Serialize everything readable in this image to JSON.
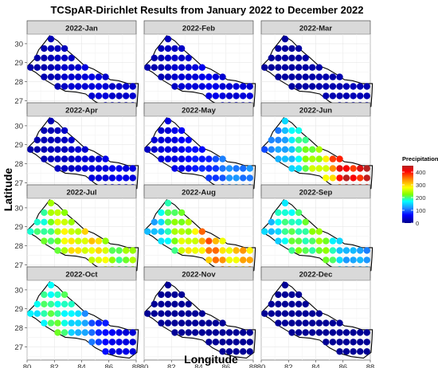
{
  "chart_data": {
    "type": "faceted-map",
    "title": "TCSpAR-Dirichlet Results from January 2022 to December 2022",
    "xlabel": "Longitude",
    "ylabel": "Latitude",
    "xticks": [
      "80",
      "82",
      "84",
      "86",
      "88"
    ],
    "yticks": [
      "27",
      "28",
      "29",
      "30"
    ],
    "xlim": [
      80,
      88
    ],
    "ylim": [
      26.3,
      30.5
    ],
    "legend": {
      "title": "Precipitation(mm)",
      "ticks": [
        "400",
        "300",
        "200",
        "100",
        "0"
      ],
      "range": [
        0,
        450
      ],
      "placement": "right",
      "colors": [
        "#00008b",
        "#0000ff",
        "#1e90ff",
        "#00ffff",
        "#7fff00",
        "#ffff00",
        "#ff8c00",
        "#ff0000",
        "#b22222"
      ]
    },
    "grid": true,
    "panels": [
      {
        "label": "2022-Jan",
        "level": [
          12,
          25,
          40,
          30
        ]
      },
      {
        "label": "2022-Feb",
        "level": [
          15,
          30,
          45,
          35
        ]
      },
      {
        "label": "2022-Mar",
        "level": [
          8,
          10,
          15,
          20
        ]
      },
      {
        "label": "2022-Apr",
        "level": [
          15,
          25,
          35,
          45
        ]
      },
      {
        "label": "2022-May",
        "level": [
          30,
          45,
          70,
          110
        ]
      },
      {
        "label": "2022-Jun",
        "level": [
          90,
          160,
          280,
          420
        ]
      },
      {
        "label": "2022-Jul",
        "level": [
          170,
          250,
          300,
          220
        ]
      },
      {
        "label": "2022-Aug",
        "level": [
          120,
          230,
          330,
          300
        ]
      },
      {
        "label": "2022-Sep",
        "level": [
          140,
          200,
          220,
          120
        ]
      },
      {
        "label": "2022-Oct",
        "level": [
          170,
          200,
          100,
          40
        ]
      },
      {
        "label": "2022-Nov",
        "level": [
          5,
          5,
          5,
          5
        ]
      },
      {
        "label": "2022-Dec",
        "level": [
          5,
          5,
          5,
          5
        ]
      }
    ]
  }
}
